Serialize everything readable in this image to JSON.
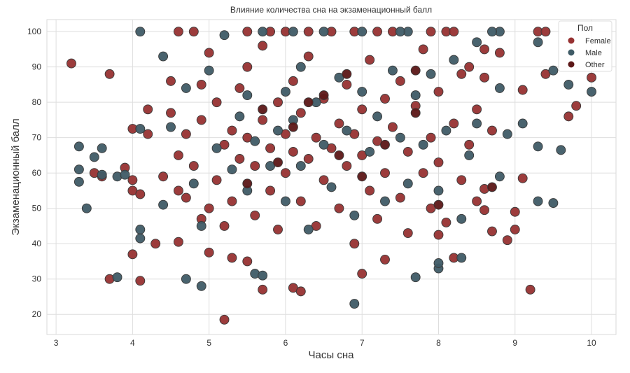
{
  "chart_data": {
    "type": "scatter",
    "title": "Влияние количества сна на экзаменационный балл",
    "xlabel": "Часы сна",
    "ylabel": "Экзаменационный балл",
    "xlim": [
      2.88,
      10.32
    ],
    "ylim": [
      14.3,
      103.4
    ],
    "xticks": [
      3,
      4,
      5,
      6,
      7,
      8,
      9,
      10
    ],
    "yticks": [
      20,
      30,
      40,
      50,
      60,
      70,
      80,
      90,
      100
    ],
    "grid": true,
    "legend": {
      "title": "Пол",
      "placement": "top-right",
      "entries": [
        {
          "key": "F",
          "label": "Female",
          "color": "#973232"
        },
        {
          "key": "M",
          "label": "Male",
          "color": "#3f5b66"
        },
        {
          "key": "O",
          "label": "Other",
          "color": "#5c1717"
        }
      ]
    },
    "points": [
      [
        3.2,
        91,
        "F"
      ],
      [
        3.7,
        88,
        "F"
      ],
      [
        3.5,
        60,
        "F"
      ],
      [
        3.6,
        59,
        "F"
      ],
      [
        3.7,
        30,
        "F"
      ],
      [
        3.9,
        61.5,
        "F"
      ],
      [
        4.0,
        55,
        "F"
      ],
      [
        4.0,
        58,
        "F"
      ],
      [
        4.0,
        72.5,
        "F"
      ],
      [
        4.0,
        37,
        "F"
      ],
      [
        4.1,
        29.5,
        "F"
      ],
      [
        4.1,
        54,
        "F"
      ],
      [
        4.2,
        78,
        "F"
      ],
      [
        4.3,
        40,
        "F"
      ],
      [
        4.2,
        71,
        "F"
      ],
      [
        4.4,
        59,
        "F"
      ],
      [
        4.5,
        86,
        "F"
      ],
      [
        4.6,
        100,
        "F"
      ],
      [
        4.6,
        55,
        "F"
      ],
      [
        4.5,
        77,
        "F"
      ],
      [
        4.8,
        100,
        "F"
      ],
      [
        4.7,
        53,
        "F"
      ],
      [
        4.9,
        85,
        "F"
      ],
      [
        5.0,
        37.5,
        "F"
      ],
      [
        5.0,
        50,
        "F"
      ],
      [
        5.0,
        94,
        "F"
      ],
      [
        5.2,
        18.5,
        "F"
      ],
      [
        5.3,
        36,
        "F"
      ],
      [
        5.2,
        45,
        "F"
      ],
      [
        5.5,
        35,
        "F"
      ],
      [
        5.5,
        100,
        "F"
      ],
      [
        5.7,
        27,
        "F"
      ],
      [
        6.1,
        27.5,
        "F"
      ],
      [
        6.2,
        26.5,
        "F"
      ],
      [
        7.0,
        31.5,
        "F"
      ],
      [
        7.3,
        35.5,
        "F"
      ],
      [
        8.0,
        42.5,
        "F"
      ],
      [
        8.2,
        36,
        "F"
      ],
      [
        8.7,
        43.5,
        "F"
      ],
      [
        9.0,
        44,
        "F"
      ],
      [
        9.0,
        49,
        "F"
      ],
      [
        9.2,
        27,
        "F"
      ],
      [
        9.3,
        100,
        "F"
      ],
      [
        9.4,
        100,
        "F"
      ],
      [
        9.4,
        88,
        "F"
      ],
      [
        9.8,
        79,
        "F"
      ],
      [
        9.7,
        76,
        "F"
      ],
      [
        10,
        87,
        "F"
      ],
      [
        9.1,
        83.5,
        "F"
      ],
      [
        9.1,
        58.5,
        "F"
      ],
      [
        8.9,
        41,
        "F"
      ],
      [
        8.6,
        55.5,
        "F"
      ],
      [
        8.6,
        49.5,
        "F"
      ],
      [
        8.8,
        94,
        "F"
      ],
      [
        8.4,
        90,
        "F"
      ],
      [
        8.6,
        95,
        "F"
      ],
      [
        8.5,
        78,
        "F"
      ],
      [
        8.6,
        87,
        "F"
      ],
      [
        4.6,
        40.5,
        "F"
      ],
      [
        4.6,
        65,
        "F"
      ],
      [
        4.7,
        71,
        "F"
      ],
      [
        4.8,
        62,
        "F"
      ],
      [
        4.9,
        47,
        "F"
      ],
      [
        4.9,
        75,
        "F"
      ],
      [
        5.1,
        80,
        "F"
      ],
      [
        5.1,
        58,
        "F"
      ],
      [
        5.2,
        68,
        "F"
      ],
      [
        5.3,
        72,
        "F"
      ],
      [
        5.3,
        52,
        "F"
      ],
      [
        5.4,
        64,
        "F"
      ],
      [
        5.4,
        84,
        "F"
      ],
      [
        5.5,
        90,
        "F"
      ],
      [
        5.5,
        70,
        "F"
      ],
      [
        5.6,
        62,
        "F"
      ],
      [
        5.6,
        48,
        "F"
      ],
      [
        5.7,
        75,
        "F"
      ],
      [
        5.7,
        96,
        "F"
      ],
      [
        5.8,
        67,
        "F"
      ],
      [
        5.8,
        55,
        "F"
      ],
      [
        5.9,
        80,
        "F"
      ],
      [
        5.9,
        44,
        "F"
      ],
      [
        6.0,
        100,
        "F"
      ],
      [
        6.0,
        71,
        "F"
      ],
      [
        6.0,
        60,
        "F"
      ],
      [
        6.1,
        86,
        "F"
      ],
      [
        6.1,
        66,
        "F"
      ],
      [
        6.2,
        52,
        "F"
      ],
      [
        6.2,
        77,
        "F"
      ],
      [
        6.3,
        93,
        "F"
      ],
      [
        6.3,
        64,
        "F"
      ],
      [
        6.4,
        70,
        "F"
      ],
      [
        6.4,
        45,
        "F"
      ],
      [
        6.5,
        81,
        "F"
      ],
      [
        6.5,
        58,
        "F"
      ],
      [
        6.6,
        100,
        "F"
      ],
      [
        6.6,
        67,
        "F"
      ],
      [
        6.7,
        74,
        "F"
      ],
      [
        6.7,
        50,
        "F"
      ],
      [
        6.8,
        62,
        "F"
      ],
      [
        6.8,
        85,
        "F"
      ],
      [
        6.9,
        71,
        "F"
      ],
      [
        6.9,
        40,
        "F"
      ],
      [
        7.0,
        78,
        "F"
      ],
      [
        7.0,
        65,
        "F"
      ],
      [
        7.1,
        92,
        "F"
      ],
      [
        7.1,
        55,
        "F"
      ],
      [
        7.2,
        69,
        "F"
      ],
      [
        7.2,
        47,
        "F"
      ],
      [
        7.3,
        81,
        "F"
      ],
      [
        7.3,
        60,
        "F"
      ],
      [
        7.4,
        100,
        "F"
      ],
      [
        7.4,
        73,
        "F"
      ],
      [
        7.5,
        53,
        "F"
      ],
      [
        7.5,
        86,
        "F"
      ],
      [
        7.6,
        66,
        "F"
      ],
      [
        7.6,
        43,
        "F"
      ],
      [
        7.7,
        79,
        "F"
      ],
      [
        7.8,
        60,
        "F"
      ],
      [
        7.8,
        95,
        "F"
      ],
      [
        7.9,
        70,
        "F"
      ],
      [
        7.9,
        50,
        "F"
      ],
      [
        8.0,
        83,
        "F"
      ],
      [
        8.0,
        63,
        "F"
      ],
      [
        8.1,
        100,
        "F"
      ],
      [
        8.1,
        46,
        "F"
      ],
      [
        8.2,
        74,
        "F"
      ],
      [
        8.3,
        58,
        "F"
      ],
      [
        8.3,
        88,
        "F"
      ],
      [
        8.4,
        68,
        "F"
      ],
      [
        8.5,
        52,
        "F"
      ],
      [
        8.7,
        72,
        "F"
      ],
      [
        8.2,
        100,
        "F"
      ],
      [
        7.9,
        100,
        "F"
      ],
      [
        7.2,
        100,
        "F"
      ],
      [
        6.9,
        100,
        "F"
      ],
      [
        6.3,
        100,
        "F"
      ],
      [
        5.8,
        100,
        "F"
      ],
      [
        4.1,
        100,
        "M"
      ],
      [
        3.3,
        67.5,
        "M"
      ],
      [
        3.3,
        61,
        "M"
      ],
      [
        3.3,
        57.5,
        "M"
      ],
      [
        3.4,
        50,
        "M"
      ],
      [
        3.5,
        64.5,
        "M"
      ],
      [
        3.6,
        67,
        "M"
      ],
      [
        3.6,
        59.5,
        "M"
      ],
      [
        3.8,
        30.5,
        "M"
      ],
      [
        3.8,
        59,
        "M"
      ],
      [
        3.9,
        59.5,
        "M"
      ],
      [
        4.1,
        72.5,
        "M"
      ],
      [
        4.1,
        44,
        "M"
      ],
      [
        4.1,
        41.5,
        "M"
      ],
      [
        4.4,
        93,
        "M"
      ],
      [
        4.4,
        51,
        "M"
      ],
      [
        4.7,
        30,
        "M"
      ],
      [
        4.9,
        28,
        "M"
      ],
      [
        5.6,
        31.5,
        "M"
      ],
      [
        5.7,
        31,
        "M"
      ],
      [
        6.9,
        23,
        "M"
      ],
      [
        7.7,
        30.5,
        "M"
      ],
      [
        8.0,
        33,
        "M"
      ],
      [
        8.0,
        34.5,
        "M"
      ],
      [
        8.3,
        36,
        "M"
      ],
      [
        8.5,
        97,
        "M"
      ],
      [
        8.8,
        100,
        "M"
      ],
      [
        8.7,
        100,
        "M"
      ],
      [
        9.3,
        97,
        "M"
      ],
      [
        9.3,
        52,
        "M"
      ],
      [
        9.5,
        51.5,
        "M"
      ],
      [
        9.5,
        89,
        "M"
      ],
      [
        9.7,
        85,
        "M"
      ],
      [
        10,
        83,
        "M"
      ],
      [
        9.6,
        66.5,
        "M"
      ],
      [
        9.3,
        67.5,
        "M"
      ],
      [
        9.1,
        74,
        "M"
      ],
      [
        8.9,
        71,
        "M"
      ],
      [
        8.8,
        59,
        "M"
      ],
      [
        8.8,
        84,
        "M"
      ],
      [
        4.5,
        73,
        "M"
      ],
      [
        4.7,
        84,
        "M"
      ],
      [
        4.8,
        57,
        "M"
      ],
      [
        4.9,
        45,
        "M"
      ],
      [
        5.0,
        89,
        "M"
      ],
      [
        5.1,
        67,
        "M"
      ],
      [
        5.2,
        99,
        "M"
      ],
      [
        5.3,
        61,
        "M"
      ],
      [
        5.4,
        76,
        "M"
      ],
      [
        5.5,
        55,
        "M"
      ],
      [
        5.5,
        82,
        "M"
      ],
      [
        5.6,
        69,
        "M"
      ],
      [
        5.7,
        100,
        "M"
      ],
      [
        5.8,
        62,
        "M"
      ],
      [
        5.9,
        72,
        "M"
      ],
      [
        6.0,
        83,
        "M"
      ],
      [
        6.0,
        52,
        "M"
      ],
      [
        6.1,
        75,
        "M"
      ],
      [
        6.2,
        62,
        "M"
      ],
      [
        6.2,
        90,
        "M"
      ],
      [
        6.3,
        44,
        "M"
      ],
      [
        6.4,
        80,
        "M"
      ],
      [
        6.5,
        68,
        "M"
      ],
      [
        6.5,
        100,
        "M"
      ],
      [
        6.6,
        56,
        "M"
      ],
      [
        6.7,
        87,
        "M"
      ],
      [
        6.8,
        72,
        "M"
      ],
      [
        6.9,
        48,
        "M"
      ],
      [
        7.0,
        100,
        "M"
      ],
      [
        7.0,
        83,
        "M"
      ],
      [
        7.1,
        66,
        "M"
      ],
      [
        7.2,
        76,
        "M"
      ],
      [
        7.3,
        52,
        "M"
      ],
      [
        7.4,
        89,
        "M"
      ],
      [
        7.5,
        70,
        "M"
      ],
      [
        7.6,
        100,
        "M"
      ],
      [
        7.6,
        57,
        "M"
      ],
      [
        7.7,
        82,
        "M"
      ],
      [
        7.8,
        68,
        "M"
      ],
      [
        7.9,
        88,
        "M"
      ],
      [
        8.0,
        55,
        "M"
      ],
      [
        8.1,
        72,
        "M"
      ],
      [
        8.2,
        92,
        "M"
      ],
      [
        8.3,
        47,
        "M"
      ],
      [
        8.4,
        65,
        "M"
      ],
      [
        8.5,
        74,
        "M"
      ],
      [
        7.5,
        100,
        "M"
      ],
      [
        6.1,
        100,
        "M"
      ],
      [
        5.5,
        57,
        "O"
      ],
      [
        6.1,
        73,
        "O"
      ],
      [
        6.8,
        88,
        "O"
      ],
      [
        7.7,
        89,
        "O"
      ],
      [
        7.7,
        77,
        "O"
      ],
      [
        8.0,
        51,
        "O"
      ],
      [
        8.7,
        56,
        "O"
      ],
      [
        6.3,
        80,
        "O"
      ],
      [
        7.0,
        59,
        "O"
      ],
      [
        6.5,
        82,
        "O"
      ],
      [
        5.9,
        63,
        "O"
      ],
      [
        5.7,
        78,
        "O"
      ],
      [
        7.3,
        68,
        "O"
      ],
      [
        6.7,
        65,
        "O"
      ]
    ]
  }
}
